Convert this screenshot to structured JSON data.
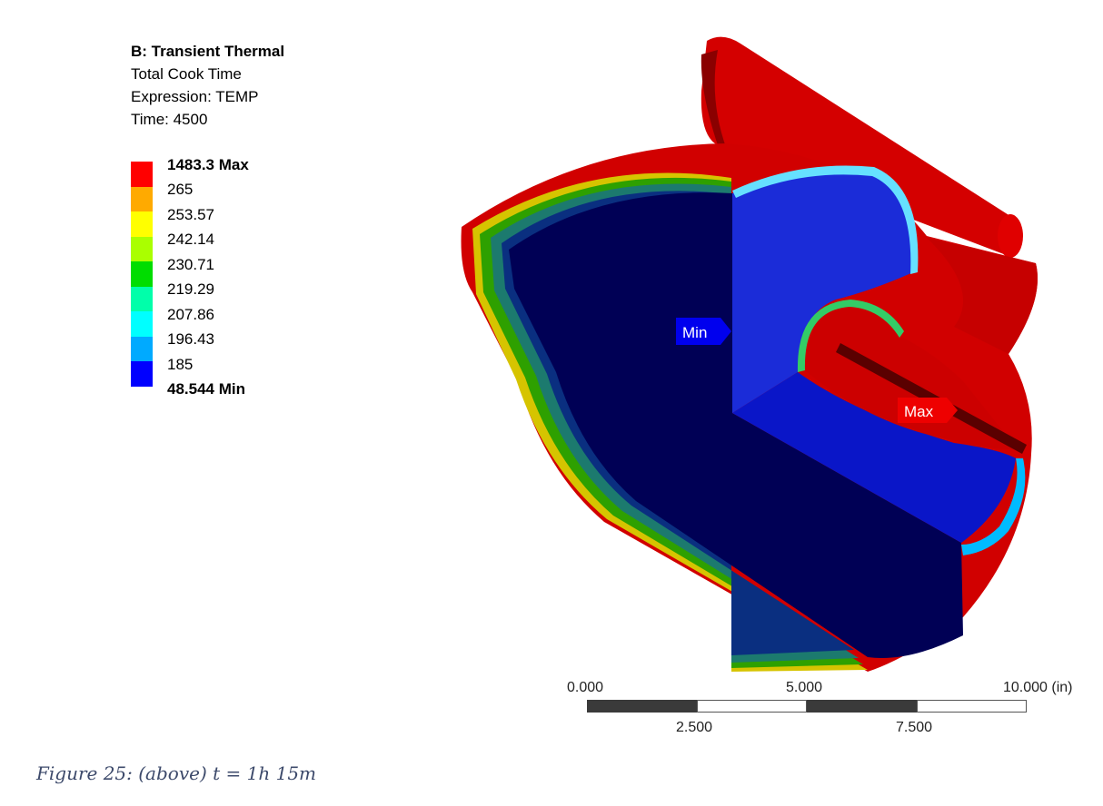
{
  "header": {
    "title": "B: Transient Thermal",
    "subtitle": "Total Cook Time",
    "expression": "Expression: TEMP",
    "time": "Time: 4500"
  },
  "legend": {
    "entries": [
      {
        "label": "1483.3 Max",
        "color": "#ff0000",
        "bold": true
      },
      {
        "label": "265",
        "color": "#ffaa00",
        "bold": false
      },
      {
        "label": "253.57",
        "color": "#ffff00",
        "bold": false
      },
      {
        "label": "242.14",
        "color": "#aaff00",
        "bold": false
      },
      {
        "label": "230.71",
        "color": "#00dd00",
        "bold": false
      },
      {
        "label": "219.29",
        "color": "#00ffaa",
        "bold": false
      },
      {
        "label": "207.86",
        "color": "#00ffff",
        "bold": false
      },
      {
        "label": "196.43",
        "color": "#00aaff",
        "bold": false
      },
      {
        "label": "185",
        "color": "#0000ff",
        "bold": false
      },
      {
        "label": "48.544 Min",
        "color": "#0000ff",
        "bold": true
      }
    ]
  },
  "probes": {
    "min_label": "Min",
    "max_label": "Max"
  },
  "scale": {
    "top_labels": [
      "0.000",
      "5.000",
      "10.000 (in)"
    ],
    "bottom_labels": [
      "2.500",
      "7.500"
    ]
  },
  "caption": "Figure 25: (above) t = 1h 15m"
}
